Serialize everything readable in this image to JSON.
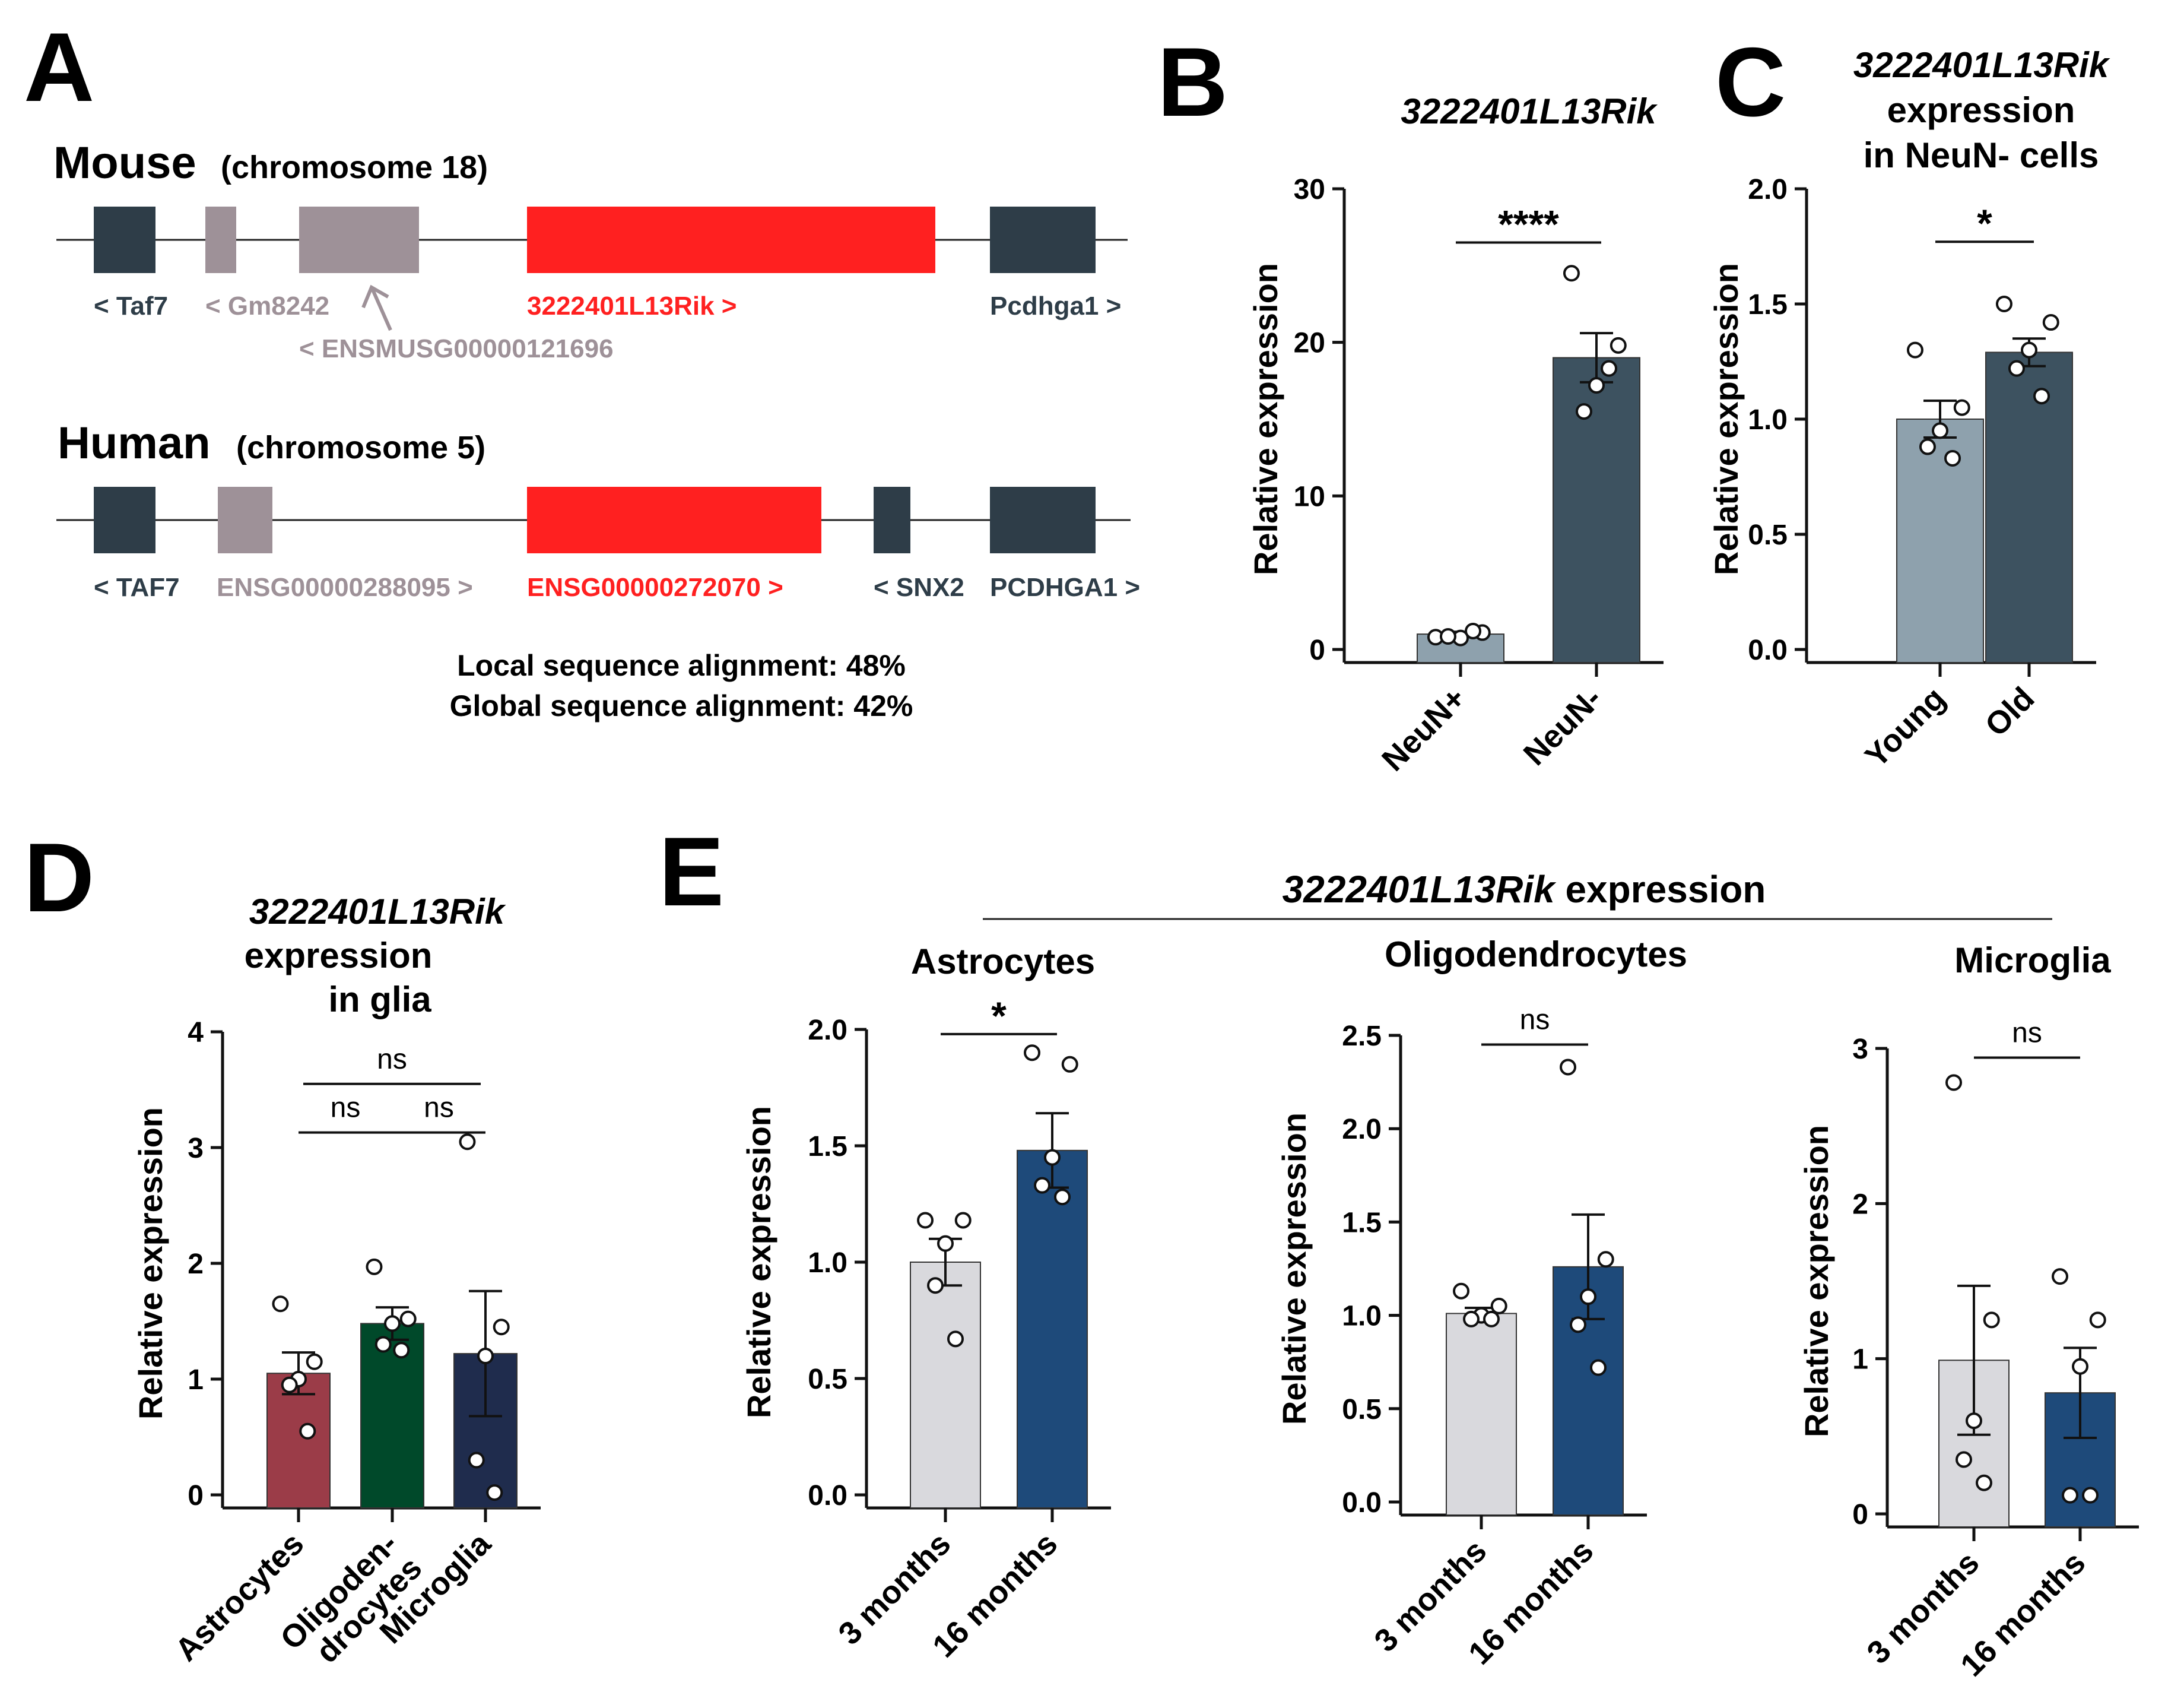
{
  "panel_letters": {
    "A": "A",
    "B": "B",
    "C": "C",
    "D": "D",
    "E": "E"
  },
  "panel_a": {
    "mouse_title": "Mouse",
    "mouse_chrom": "(chromosome 18)",
    "mouse_genes": {
      "taf7": "< Taf7",
      "gm8242": "< Gm8242",
      "ensmusg": "< ENSMUSG00000121696",
      "rik": "3222401L13Rik >",
      "pcdhga1": "Pcdhga1 >"
    },
    "human_title": "Human",
    "human_chrom": "(chromosome 5)",
    "human_genes": {
      "taf7": "< TAF7",
      "ensg1": "ENSG00000288095 >",
      "ensg2": "ENSG00000272070 >",
      "snx2": "< SNX2",
      "pcdhga1": "PCDHGA1 >"
    },
    "alignment_local": "Local sequence alignment: 48%",
    "alignment_global": "Global sequence alignment: 42%"
  },
  "panel_e_header": {
    "gene": "3222401L13Rik",
    "suffix": " expression"
  },
  "colors": {
    "dark": "#2e3d48",
    "mauve": "#9e9198",
    "red": "#ff2020",
    "slate": "#3d5260",
    "light_slate": "#8ea1ad",
    "astro": "#9b3c48",
    "oligo": "#00492a",
    "micro": "#1f2c4d",
    "grey": "#d9d9dd",
    "blue": "#1e4a7a"
  },
  "chart_data": [
    {
      "panel": "B",
      "type": "bar",
      "title": "3222401L13Rik",
      "ylabel": "Relative expression",
      "ylim": [
        0,
        30
      ],
      "yticks": [
        0,
        10,
        20,
        30
      ],
      "categories": [
        "NeuN+",
        "NeuN-"
      ],
      "values": [
        1.0,
        19.0
      ],
      "sem": [
        0.15,
        1.6
      ],
      "colors": [
        "#8ea1ad",
        "#3d5260"
      ],
      "points": [
        [
          0.8,
          1.1,
          0.75,
          0.85,
          1.2
        ],
        [
          24.5,
          19.8,
          17.2,
          15.5,
          18.3
        ]
      ],
      "comparisons": [
        {
          "from": 0,
          "to": 1,
          "label": "****"
        }
      ]
    },
    {
      "panel": "C",
      "type": "bar",
      "title": [
        "3222401L13Rik",
        "expression",
        "in NeuN- cells"
      ],
      "ylabel": "Relative expression",
      "ylim": [
        0,
        2.0
      ],
      "yticks": [
        "0.0",
        "0.5",
        "1.0",
        "1.5",
        "2.0"
      ],
      "categories": [
        "Young",
        "Old"
      ],
      "values": [
        1.0,
        1.29
      ],
      "sem": [
        0.08,
        0.06
      ],
      "colors": [
        "#8ea1ad",
        "#3d5260"
      ],
      "points": [
        [
          1.3,
          1.05,
          0.95,
          0.88,
          0.83
        ],
        [
          1.5,
          1.42,
          1.3,
          1.22,
          1.1
        ]
      ],
      "comparisons": [
        {
          "from": 0,
          "to": 1,
          "label": "*"
        }
      ]
    },
    {
      "panel": "D",
      "type": "bar",
      "title": [
        "3222401L13Rik",
        "expression",
        "in glia"
      ],
      "ylabel": "Relative expression",
      "ylim": [
        0,
        4
      ],
      "yticks": [
        0,
        1,
        2,
        3,
        4
      ],
      "categories": [
        "Astrocytes",
        [
          "Oligoden-",
          "drocytes"
        ],
        "Microglia"
      ],
      "values": [
        1.05,
        1.48,
        1.22
      ],
      "sem": [
        0.18,
        0.14,
        0.54
      ],
      "colors": [
        "#9b3c48",
        "#00492a",
        "#1f2c4d"
      ],
      "points": [
        [
          1.65,
          1.15,
          1.0,
          0.95,
          0.55
        ],
        [
          1.97,
          1.52,
          1.48,
          1.3,
          1.25
        ],
        [
          3.05,
          1.45,
          1.2,
          0.3,
          0.02
        ]
      ],
      "comparisons": [
        {
          "from": 0,
          "to": 1,
          "label": "ns",
          "level": 0
        },
        {
          "from": 1,
          "to": 2,
          "label": "ns",
          "level": 0
        },
        {
          "from": 0,
          "to": 2,
          "label": "ns",
          "level": 1
        }
      ]
    },
    {
      "panel": "E1",
      "type": "bar",
      "title": "Astrocytes",
      "ylabel": "Relative expression",
      "ylim": [
        0,
        2.0
      ],
      "yticks": [
        "0.0",
        "0.5",
        "1.0",
        "1.5",
        "2.0"
      ],
      "categories": [
        "3 months",
        "16 months"
      ],
      "values": [
        1.0,
        1.48
      ],
      "sem": [
        0.1,
        0.16
      ],
      "colors": [
        "#d9d9dd",
        "#1e4a7a"
      ],
      "points": [
        [
          1.18,
          1.18,
          1.08,
          0.9,
          0.67
        ],
        [
          1.9,
          1.85,
          1.45,
          1.33,
          1.28
        ]
      ],
      "comparisons": [
        {
          "from": 0,
          "to": 1,
          "label": "*"
        }
      ]
    },
    {
      "panel": "E2",
      "type": "bar",
      "title": "Oligodendrocytes",
      "ylabel": "Relative expression",
      "ylim": [
        0,
        2.5
      ],
      "yticks": [
        "0.0",
        "0.5",
        "1.0",
        "1.5",
        "2.0",
        "2.5"
      ],
      "categories": [
        "3 months",
        "16 months"
      ],
      "values": [
        1.01,
        1.26
      ],
      "sem": [
        0.03,
        0.28
      ],
      "colors": [
        "#d9d9dd",
        "#1e4a7a"
      ],
      "points": [
        [
          1.13,
          1.05,
          1.0,
          0.98,
          0.98
        ],
        [
          2.33,
          1.3,
          1.1,
          0.95,
          0.72
        ]
      ],
      "comparisons": [
        {
          "from": 0,
          "to": 1,
          "label": "ns"
        }
      ]
    },
    {
      "panel": "E3",
      "type": "bar",
      "title": "Microglia",
      "ylabel": "Relative expression",
      "ylim": [
        0,
        3
      ],
      "yticks": [
        0,
        1,
        2,
        3
      ],
      "categories": [
        "3 months",
        "16 months"
      ],
      "values": [
        0.99,
        0.78
      ],
      "sem": [
        0.48,
        0.29
      ],
      "colors": [
        "#d9d9dd",
        "#1e4a7a"
      ],
      "points": [
        [
          2.78,
          1.25,
          0.6,
          0.35,
          0.2
        ],
        [
          1.53,
          1.25,
          0.95,
          0.12,
          0.12
        ]
      ],
      "comparisons": [
        {
          "from": 0,
          "to": 1,
          "label": "ns"
        }
      ]
    }
  ]
}
